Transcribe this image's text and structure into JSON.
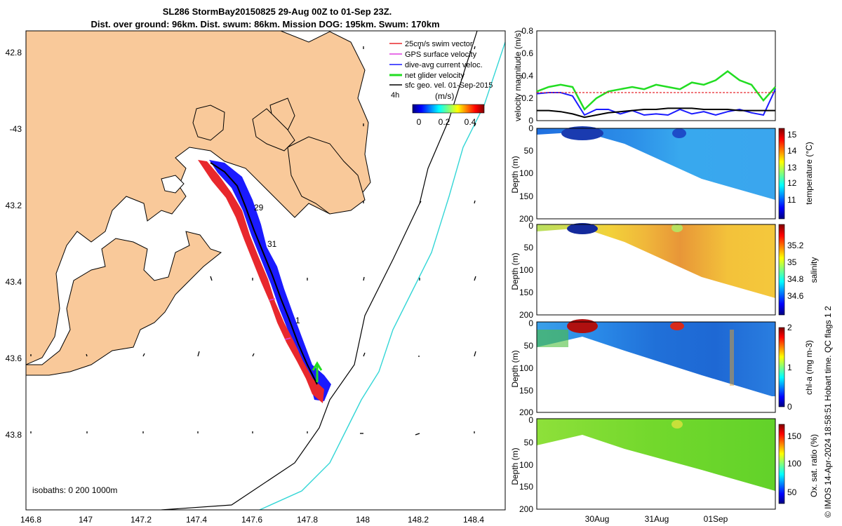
{
  "header": {
    "title_line1": "SL286 StormBay20150825 29-Aug 00Z to 01-Sep 23Z.",
    "title_line2": "Dist. over ground: 96km. Dist. swum: 86km. Mission DOG: 195km. Swum: 170km"
  },
  "map": {
    "lat_ticks": [
      "42.8",
      "-43",
      "43.2",
      "43.4",
      "43.6",
      "43.8"
    ],
    "lon_ticks": [
      "146.8",
      "147",
      "147.2",
      "147.4",
      "147.6",
      "147.8",
      "148",
      "148.2",
      "148.4"
    ],
    "day_labels": [
      "29",
      "31",
      "1"
    ],
    "isobaths_label": "isobaths: 0   200  1000m",
    "land_color": "#f9c99a",
    "legend": [
      {
        "label": "25cm/s swim vector",
        "color": "#e8282d"
      },
      {
        "label": "GPS surface velocity",
        "color": "#e040e0"
      },
      {
        "label": "dive-avg current veloc.",
        "color": "#1a1aff"
      },
      {
        "label": "net glider velocity",
        "color": "#22dd22"
      },
      {
        "label": "sfc geo. vel. 01-Sep-2015",
        "color": "#000000"
      }
    ],
    "legend_extra": "4h",
    "colorbar": {
      "label": "(m/s)",
      "ticks": [
        "0",
        "0.2",
        "0.4"
      ]
    }
  },
  "panels": {
    "x_ticks": [
      "30Aug",
      "31Aug",
      "01Sep"
    ],
    "depth_label": "Depth (m)",
    "depth_ticks": [
      "0",
      "50",
      "100",
      "150",
      "200"
    ],
    "side_note": "© IMOS 14-Apr-2024 18:58:51 Hobart time. QC flags 1  2"
  },
  "chart_data": [
    {
      "type": "line",
      "ylabel": "velocity magnitude (m/s)",
      "ylim": [
        0,
        0.8
      ],
      "yticks": [
        "0",
        "0.2",
        "0.4",
        "0.6",
        "0.8"
      ],
      "x": [
        0,
        0.05,
        0.1,
        0.15,
        0.2,
        0.25,
        0.3,
        0.35,
        0.4,
        0.45,
        0.5,
        0.55,
        0.6,
        0.65,
        0.7,
        0.75,
        0.8,
        0.85,
        0.9,
        0.95,
        1.0
      ],
      "series": [
        {
          "color": "#22dd22",
          "values": [
            0.26,
            0.3,
            0.32,
            0.3,
            0.1,
            0.2,
            0.26,
            0.28,
            0.3,
            0.28,
            0.32,
            0.3,
            0.28,
            0.34,
            0.32,
            0.36,
            0.44,
            0.36,
            0.32,
            0.18,
            0.3
          ]
        },
        {
          "color": "#1a1aff",
          "values": [
            0.24,
            0.25,
            0.25,
            0.22,
            0.05,
            0.1,
            0.1,
            0.06,
            0.09,
            0.05,
            0.06,
            0.05,
            0.1,
            0.06,
            0.08,
            0.05,
            0.08,
            0.1,
            0.07,
            0.05,
            0.28
          ]
        },
        {
          "color": "#000000",
          "values": [
            0.09,
            0.09,
            0.08,
            0.06,
            0.03,
            0.05,
            0.07,
            0.08,
            0.09,
            0.1,
            0.1,
            0.11,
            0.11,
            0.11,
            0.1,
            0.1,
            0.1,
            0.09,
            0.09,
            0.09,
            0.09
          ]
        },
        {
          "color": "#e8282d",
          "values": [
            0.25,
            0.25,
            0.25,
            0.25,
            0.25,
            0.25,
            0.25,
            0.25,
            0.25,
            0.25,
            0.25,
            0.25,
            0.25,
            0.25,
            0.25,
            0.25,
            0.25,
            0.25,
            0.25,
            0.25,
            0.25
          ]
        }
      ]
    },
    {
      "type": "heatmap",
      "ylabel": "Depth (m)",
      "colorbar_label": "temperature (°C)",
      "cticks": [
        "11",
        "12",
        "13",
        "14",
        "15"
      ],
      "ylim": [
        200,
        0
      ]
    },
    {
      "type": "heatmap",
      "ylabel": "Depth (m)",
      "colorbar_label": "salinity",
      "cticks": [
        "34.6",
        "34.8",
        "35",
        "35.2"
      ],
      "ylim": [
        200,
        0
      ]
    },
    {
      "type": "heatmap",
      "ylabel": "Depth (m)",
      "colorbar_label": "chl-a (mg m-3)",
      "cticks": [
        "0",
        "1",
        "2"
      ],
      "ylim": [
        200,
        0
      ]
    },
    {
      "type": "heatmap",
      "ylabel": "Depth (m)",
      "colorbar_label": "Ox. sat. ratio (%)",
      "cticks": [
        "50",
        "100",
        "150"
      ],
      "ylim": [
        200,
        0
      ]
    }
  ]
}
